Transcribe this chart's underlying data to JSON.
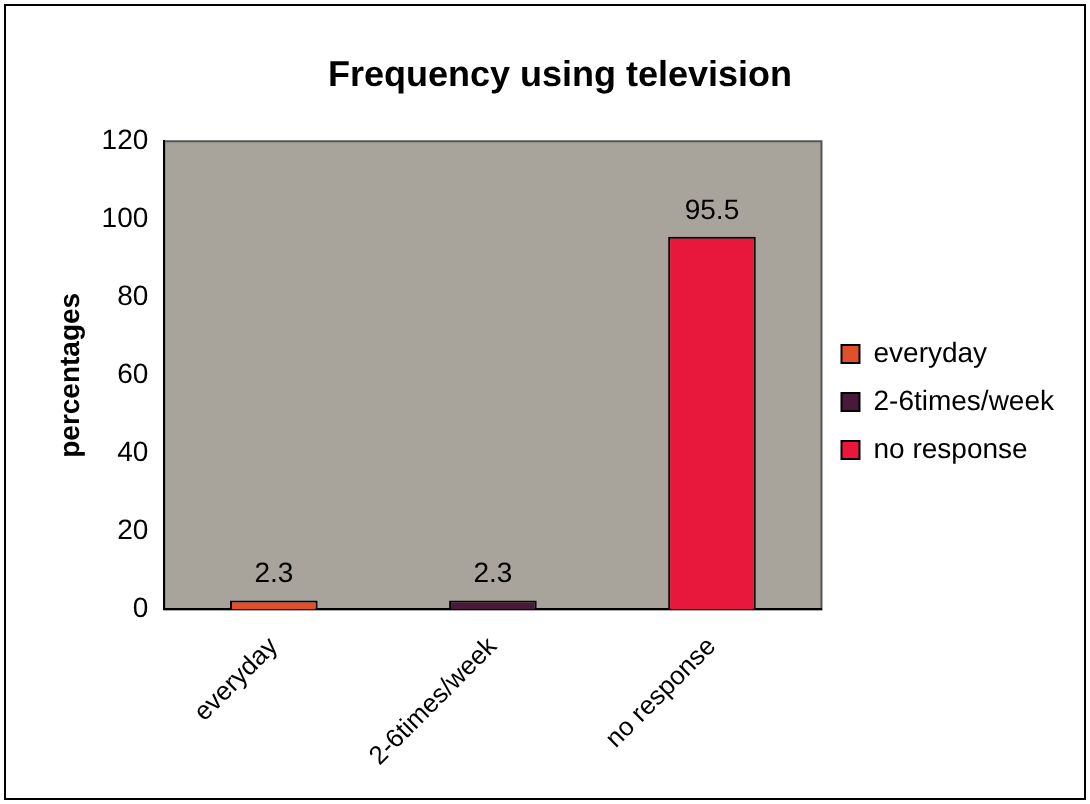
{
  "chart_data": {
    "type": "bar",
    "title": "Frequency using television",
    "ylabel": "percentages",
    "categories": [
      "everyday",
      "2-6times/week",
      "no response"
    ],
    "series": [
      {
        "name": "everyday",
        "color": "#e0502a",
        "values": [
          2.3,
          null,
          null
        ]
      },
      {
        "name": "2-6times/week",
        "color": "#4a1838",
        "values": [
          null,
          2.3,
          null
        ]
      },
      {
        "name": "no response",
        "color": "#e8183c",
        "values": [
          null,
          null,
          95.5
        ]
      }
    ],
    "ylim": [
      0,
      120
    ],
    "yticks": [
      0,
      20,
      40,
      60,
      80,
      100,
      120
    ],
    "grid": false,
    "legend": "right",
    "data_labels": true
  }
}
